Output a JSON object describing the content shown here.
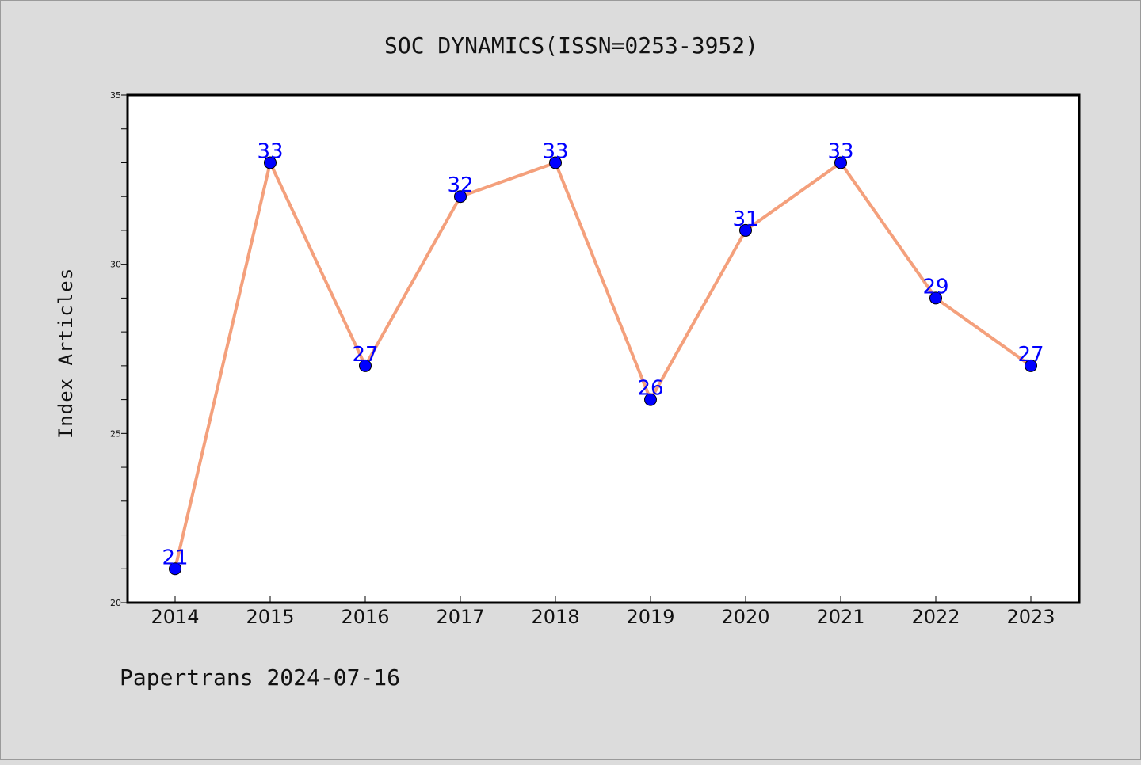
{
  "chart_data": {
    "type": "line",
    "title": "SOC DYNAMICS(ISSN=0253-3952)",
    "xlabel": "",
    "ylabel": "Index Articles",
    "categories": [
      "2014",
      "2015",
      "2016",
      "2017",
      "2018",
      "2019",
      "2020",
      "2021",
      "2022",
      "2023"
    ],
    "series": [
      {
        "values": [
          21,
          33,
          27,
          32,
          33,
          26,
          31,
          33,
          29,
          27
        ]
      }
    ],
    "ylim": [
      20,
      35
    ],
    "yticks": [
      20,
      25,
      30,
      35
    ],
    "grid": false,
    "legend": "none",
    "colors": {
      "line": "#f4a07c",
      "marker": "#0000ff",
      "label": "#0000ff",
      "background": "#dcdcdc",
      "plot_background": "#ffffff"
    }
  },
  "footer": "Papertrans 2024-07-16"
}
